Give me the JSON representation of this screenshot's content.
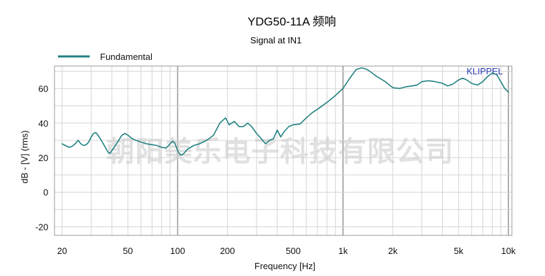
{
  "chart_data": {
    "type": "line",
    "title": "YDG50-11A 频响",
    "subtitle": "Signal at IN1",
    "xlabel": "Frequency [Hz]",
    "ylabel": "dB - [V]  (rms)",
    "x_scale": "log",
    "xlim": [
      18,
      10500
    ],
    "ylim": [
      -25,
      73
    ],
    "grid": true,
    "legend_position": "top-left",
    "x_ticks": [
      {
        "value": 20,
        "label": "20"
      },
      {
        "value": 50,
        "label": "50"
      },
      {
        "value": 100,
        "label": "100"
      },
      {
        "value": 200,
        "label": "200"
      },
      {
        "value": 500,
        "label": "500"
      },
      {
        "value": 1000,
        "label": "1k"
      },
      {
        "value": 2000,
        "label": "2k"
      },
      {
        "value": 5000,
        "label": "5k"
      },
      {
        "value": 10000,
        "label": "10k"
      }
    ],
    "y_ticks": [
      {
        "value": 60,
        "label": "60"
      },
      {
        "value": 40,
        "label": "40"
      },
      {
        "value": 20,
        "label": "20"
      },
      {
        "value": 0,
        "label": "0"
      },
      {
        "value": -20,
        "label": "-20"
      }
    ],
    "series": [
      {
        "name": "Fundamental",
        "color": "#1f8080",
        "points": [
          [
            20,
            28
          ],
          [
            21,
            27
          ],
          [
            22,
            26
          ],
          [
            23,
            26.5
          ],
          [
            24,
            28
          ],
          [
            25,
            30
          ],
          [
            26,
            28
          ],
          [
            27,
            27
          ],
          [
            28,
            27.5
          ],
          [
            29,
            29
          ],
          [
            30,
            32
          ],
          [
            31,
            34
          ],
          [
            32,
            34.5
          ],
          [
            33,
            33
          ],
          [
            34,
            31
          ],
          [
            35,
            29
          ],
          [
            36,
            27
          ],
          [
            37,
            25
          ],
          [
            38,
            23
          ],
          [
            39,
            22.5
          ],
          [
            40,
            24
          ],
          [
            42,
            27
          ],
          [
            44,
            30
          ],
          [
            46,
            33
          ],
          [
            48,
            34
          ],
          [
            50,
            33
          ],
          [
            53,
            31
          ],
          [
            56,
            30
          ],
          [
            60,
            29
          ],
          [
            65,
            28
          ],
          [
            70,
            27.5
          ],
          [
            75,
            27
          ],
          [
            80,
            26
          ],
          [
            85,
            25.5
          ],
          [
            90,
            28
          ],
          [
            93,
            29.5
          ],
          [
            96,
            28.5
          ],
          [
            100,
            24
          ],
          [
            104,
            21.5
          ],
          [
            108,
            22
          ],
          [
            115,
            25
          ],
          [
            125,
            27
          ],
          [
            135,
            28
          ],
          [
            150,
            30
          ],
          [
            165,
            33
          ],
          [
            180,
            40
          ],
          [
            195,
            43
          ],
          [
            205,
            39
          ],
          [
            220,
            41
          ],
          [
            235,
            38
          ],
          [
            250,
            38
          ],
          [
            265,
            40
          ],
          [
            280,
            38
          ],
          [
            300,
            34
          ],
          [
            320,
            31
          ],
          [
            340,
            28
          ],
          [
            360,
            30
          ],
          [
            380,
            31
          ],
          [
            400,
            36
          ],
          [
            420,
            32
          ],
          [
            440,
            35
          ],
          [
            470,
            38
          ],
          [
            500,
            39
          ],
          [
            550,
            39.5
          ],
          [
            600,
            43
          ],
          [
            650,
            46
          ],
          [
            700,
            48
          ],
          [
            800,
            52
          ],
          [
            900,
            56
          ],
          [
            1000,
            60
          ],
          [
            1100,
            66
          ],
          [
            1200,
            71
          ],
          [
            1300,
            72
          ],
          [
            1400,
            71
          ],
          [
            1500,
            69
          ],
          [
            1600,
            67
          ],
          [
            1800,
            64
          ],
          [
            2000,
            60.5
          ],
          [
            2200,
            60
          ],
          [
            2400,
            61
          ],
          [
            2600,
            61.5
          ],
          [
            2800,
            62
          ],
          [
            3000,
            64
          ],
          [
            3300,
            64.5
          ],
          [
            3600,
            64
          ],
          [
            4000,
            63
          ],
          [
            4300,
            61.5
          ],
          [
            4600,
            62.5
          ],
          [
            5000,
            65
          ],
          [
            5300,
            66
          ],
          [
            5600,
            65
          ],
          [
            6000,
            63
          ],
          [
            6500,
            62
          ],
          [
            7000,
            64
          ],
          [
            7500,
            67
          ],
          [
            8000,
            69
          ],
          [
            8500,
            68
          ],
          [
            9000,
            64
          ],
          [
            9500,
            60
          ],
          [
            10000,
            58
          ]
        ]
      }
    ]
  },
  "brand_label": "KLIPPEL",
  "watermark": "朝阳美乐电子科技有限公司",
  "colors": {
    "series": "#1f8080",
    "brand": "#2a3db0",
    "plot_border": "#9a9a9a",
    "grid_minor": "#d4d4d4",
    "grid_major": "#9a9a9a"
  }
}
